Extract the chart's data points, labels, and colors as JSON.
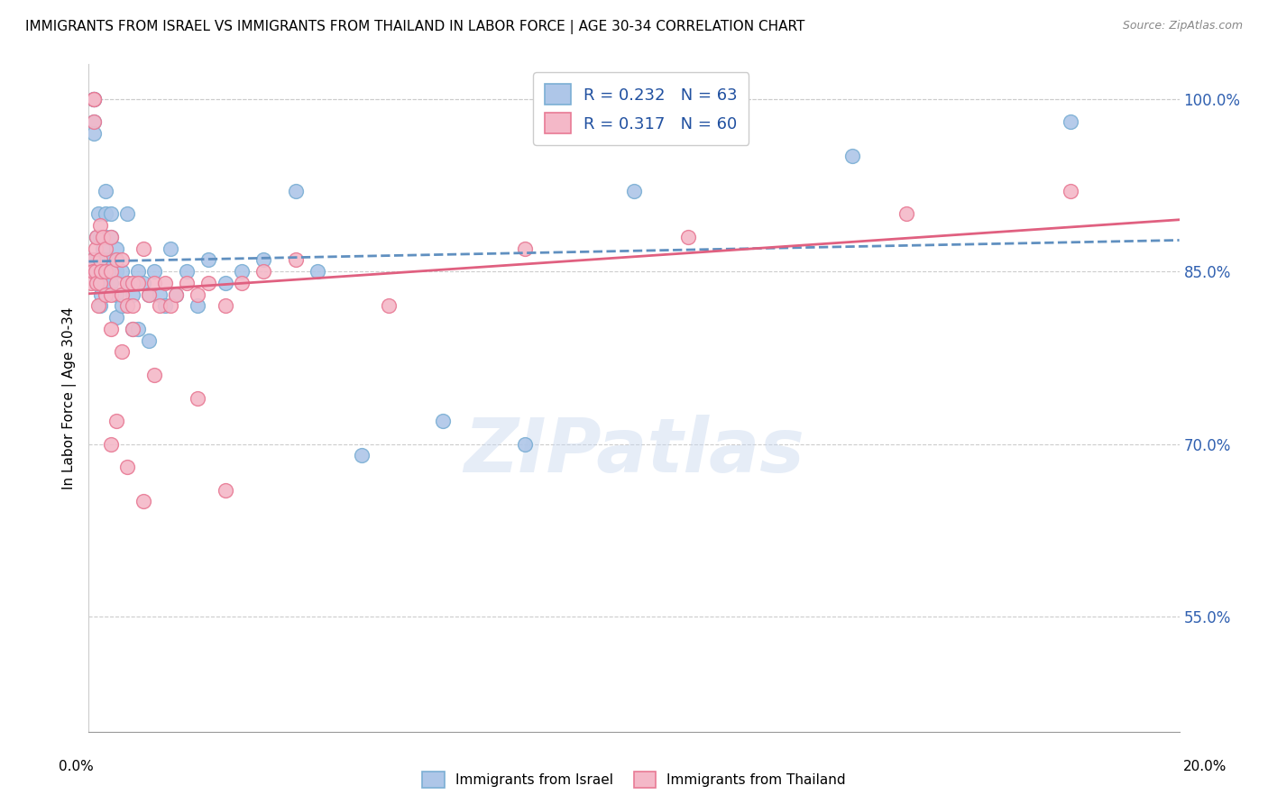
{
  "title": "IMMIGRANTS FROM ISRAEL VS IMMIGRANTS FROM THAILAND IN LABOR FORCE | AGE 30-34 CORRELATION CHART",
  "source": "Source: ZipAtlas.com",
  "ylabel_label": "In Labor Force | Age 30-34",
  "x_min": 0.0,
  "x_max": 0.2,
  "y_min": 0.45,
  "y_max": 1.03,
  "yticks": [
    0.55,
    0.7,
    0.85,
    1.0
  ],
  "ytick_labels": [
    "55.0%",
    "70.0%",
    "85.0%",
    "100.0%"
  ],
  "israel_color": "#aec6e8",
  "thailand_color": "#f4b8c8",
  "israel_edge_color": "#7bafd4",
  "thailand_edge_color": "#e87a95",
  "israel_line_color": "#6090c0",
  "thailand_line_color": "#e06080",
  "R_israel": 0.232,
  "N_israel": 63,
  "R_thailand": 0.317,
  "N_thailand": 60,
  "legend_label_israel": "Immigrants from Israel",
  "legend_label_thailand": "Immigrants from Thailand",
  "watermark": "ZIPatlas",
  "israel_x": [
    0.0005,
    0.0007,
    0.0008,
    0.001,
    0.001,
    0.001,
    0.001,
    0.001,
    0.0012,
    0.0012,
    0.0015,
    0.0015,
    0.0015,
    0.0018,
    0.002,
    0.002,
    0.002,
    0.002,
    0.0022,
    0.0025,
    0.003,
    0.003,
    0.003,
    0.003,
    0.003,
    0.004,
    0.004,
    0.004,
    0.004,
    0.005,
    0.005,
    0.005,
    0.005,
    0.006,
    0.006,
    0.007,
    0.007,
    0.008,
    0.008,
    0.009,
    0.009,
    0.01,
    0.011,
    0.011,
    0.012,
    0.013,
    0.014,
    0.015,
    0.016,
    0.018,
    0.02,
    0.022,
    0.025,
    0.028,
    0.032,
    0.038,
    0.042,
    0.05,
    0.065,
    0.08,
    0.1,
    0.14,
    0.18
  ],
  "israel_y": [
    0.855,
    0.86,
    0.85,
    1.0,
    1.0,
    1.0,
    0.98,
    0.97,
    0.86,
    0.85,
    0.88,
    0.85,
    0.84,
    0.9,
    0.88,
    0.86,
    0.84,
    0.82,
    0.83,
    0.87,
    0.92,
    0.9,
    0.88,
    0.86,
    0.84,
    0.9,
    0.88,
    0.86,
    0.84,
    0.87,
    0.85,
    0.83,
    0.81,
    0.85,
    0.82,
    0.9,
    0.84,
    0.83,
    0.8,
    0.85,
    0.8,
    0.84,
    0.83,
    0.79,
    0.85,
    0.83,
    0.82,
    0.87,
    0.83,
    0.85,
    0.82,
    0.86,
    0.84,
    0.85,
    0.86,
    0.92,
    0.85,
    0.69,
    0.72,
    0.7,
    0.92,
    0.95,
    0.98
  ],
  "thailand_x": [
    0.0005,
    0.0007,
    0.0008,
    0.001,
    0.001,
    0.001,
    0.0012,
    0.0012,
    0.0015,
    0.0015,
    0.0018,
    0.002,
    0.002,
    0.002,
    0.0022,
    0.0025,
    0.003,
    0.003,
    0.003,
    0.004,
    0.004,
    0.004,
    0.005,
    0.005,
    0.006,
    0.006,
    0.007,
    0.007,
    0.008,
    0.008,
    0.009,
    0.01,
    0.011,
    0.012,
    0.013,
    0.014,
    0.015,
    0.016,
    0.018,
    0.02,
    0.022,
    0.025,
    0.028,
    0.032,
    0.038,
    0.055,
    0.08,
    0.11,
    0.15,
    0.18,
    0.004,
    0.006,
    0.008,
    0.012,
    0.02,
    0.025,
    0.004,
    0.005,
    0.007,
    0.01
  ],
  "thailand_y": [
    0.84,
    0.86,
    0.85,
    1.0,
    1.0,
    0.98,
    0.87,
    0.85,
    0.88,
    0.84,
    0.82,
    0.89,
    0.86,
    0.84,
    0.85,
    0.88,
    0.87,
    0.85,
    0.83,
    0.88,
    0.85,
    0.83,
    0.86,
    0.84,
    0.86,
    0.83,
    0.84,
    0.82,
    0.84,
    0.82,
    0.84,
    0.87,
    0.83,
    0.84,
    0.82,
    0.84,
    0.82,
    0.83,
    0.84,
    0.83,
    0.84,
    0.82,
    0.84,
    0.85,
    0.86,
    0.82,
    0.87,
    0.88,
    0.9,
    0.92,
    0.8,
    0.78,
    0.8,
    0.76,
    0.74,
    0.66,
    0.7,
    0.72,
    0.68,
    0.65
  ]
}
